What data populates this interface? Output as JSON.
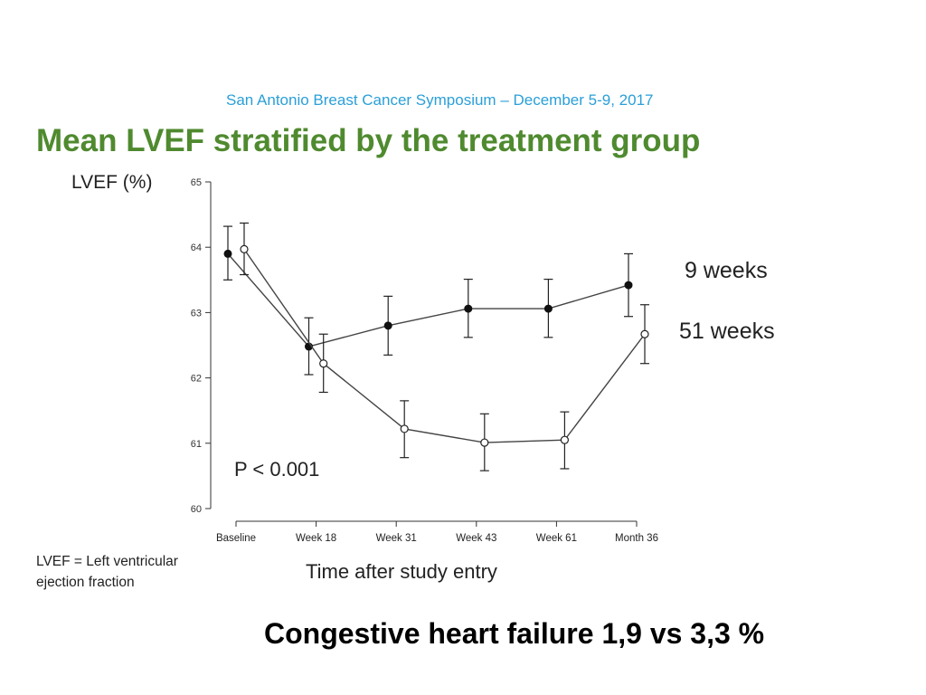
{
  "header": {
    "conference": "San Antonio Breast Cancer Symposium – December 5-9, 2017",
    "title": "Mean LVEF stratified by the treatment group"
  },
  "annotation": "P < 0.001",
  "footnote": "LVEF = Left ventricular ejection fraction",
  "conclusion": "Congestive heart failure 1,9 vs 3,3 %",
  "chart_data": {
    "type": "line",
    "title": "Mean LVEF stratified by the treatment group",
    "xlabel": "Time after study entry",
    "ylabel": "LVEF (%)",
    "categories": [
      "Baseline",
      "Week 18",
      "Week 31",
      "Week 43",
      "Week 61",
      "Month 36"
    ],
    "ylim": [
      60,
      65
    ],
    "yticks": [
      60,
      61,
      62,
      63,
      64,
      65
    ],
    "grid": false,
    "legend": "right",
    "series": [
      {
        "name": "9 weeks",
        "marker": "filled",
        "values": [
          63.9,
          62.48,
          62.8,
          63.06,
          63.06,
          63.42
        ],
        "ci_low": [
          63.5,
          62.05,
          62.35,
          62.62,
          62.62,
          62.94
        ],
        "ci_high": [
          64.32,
          62.92,
          63.25,
          63.51,
          63.51,
          63.9
        ]
      },
      {
        "name": "51 weeks",
        "marker": "open",
        "values": [
          63.97,
          62.22,
          61.22,
          61.01,
          61.05,
          62.67
        ],
        "ci_low": [
          63.58,
          61.78,
          60.78,
          60.58,
          60.61,
          62.22
        ],
        "ci_high": [
          64.37,
          62.67,
          61.65,
          61.45,
          61.48,
          63.12
        ]
      }
    ]
  }
}
